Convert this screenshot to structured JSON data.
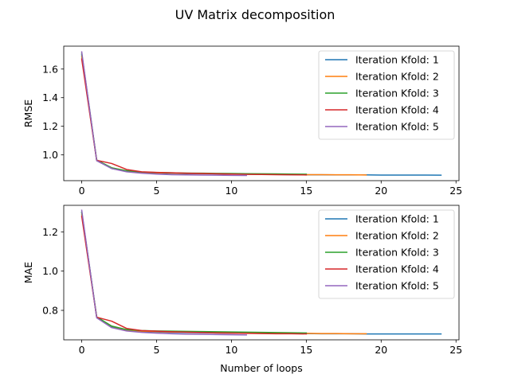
{
  "chart_data": {
    "title": "UV Matrix decomposition",
    "subplots": [
      {
        "type": "line",
        "xlabel": "",
        "ylabel": "RMSE",
        "xlim": [
          -1.2,
          25.2
        ],
        "ylim": [
          0.82,
          1.76
        ],
        "xticks": [
          0,
          5,
          10,
          15,
          20,
          25
        ],
        "yticks": [
          1.0,
          1.2,
          1.4,
          1.6
        ],
        "ytick_labels": [
          "1.0",
          "1.2",
          "1.4",
          "1.6"
        ],
        "legend_position": "top-right",
        "series": [
          {
            "name": "Iteration Kfold: 1",
            "color": "#1f77b4",
            "x": [
              0,
              1,
              2,
              3,
              4,
              5,
              6,
              7,
              8,
              9,
              10,
              11,
              12,
              13,
              14,
              15,
              16,
              17,
              18,
              19,
              20,
              21,
              22,
              23,
              24
            ],
            "y": [
              1.7,
              0.96,
              0.905,
              0.885,
              0.877,
              0.873,
              0.871,
              0.869,
              0.868,
              0.867,
              0.866,
              0.865,
              0.864,
              0.863,
              0.862,
              0.861,
              0.861,
              0.86,
              0.86,
              0.86,
              0.859,
              0.859,
              0.859,
              0.859,
              0.858
            ]
          },
          {
            "name": "Iteration Kfold: 2",
            "color": "#ff7f0e",
            "x": [
              0,
              1,
              2,
              3,
              4,
              5,
              6,
              7,
              8,
              9,
              10,
              11,
              12,
              13,
              14,
              15,
              16,
              17,
              18,
              19
            ],
            "y": [
              1.69,
              0.96,
              0.91,
              0.888,
              0.879,
              0.875,
              0.873,
              0.871,
              0.87,
              0.868,
              0.867,
              0.866,
              0.865,
              0.864,
              0.863,
              0.862,
              0.862,
              0.861,
              0.861,
              0.86
            ]
          },
          {
            "name": "Iteration Kfold: 3",
            "color": "#2ca02c",
            "x": [
              0,
              1,
              2,
              3,
              4,
              5,
              6,
              7,
              8,
              9,
              10,
              11,
              12,
              13,
              14,
              15
            ],
            "y": [
              1.71,
              0.965,
              0.91,
              0.889,
              0.88,
              0.877,
              0.875,
              0.873,
              0.872,
              0.871,
              0.87,
              0.869,
              0.868,
              0.867,
              0.866,
              0.865
            ]
          },
          {
            "name": "Iteration Kfold: 4",
            "color": "#d62728",
            "x": [
              0,
              1,
              2,
              3,
              4,
              5,
              6,
              7,
              8,
              9,
              10,
              11,
              12,
              13,
              14,
              15
            ],
            "y": [
              1.67,
              0.962,
              0.94,
              0.898,
              0.882,
              0.878,
              0.875,
              0.872,
              0.87,
              0.868,
              0.866,
              0.864,
              0.863,
              0.862,
              0.861,
              0.86
            ]
          },
          {
            "name": "Iteration Kfold: 5",
            "color": "#9467bd",
            "x": [
              0,
              1,
              2,
              3,
              4,
              5,
              6,
              7,
              8,
              9,
              10,
              11
            ],
            "y": [
              1.72,
              0.96,
              0.905,
              0.882,
              0.872,
              0.866,
              0.862,
              0.86,
              0.859,
              0.858,
              0.857,
              0.856
            ]
          }
        ]
      },
      {
        "type": "line",
        "xlabel": "Number of loops",
        "ylabel": "MAE",
        "xlim": [
          -1.2,
          25.2
        ],
        "ylim": [
          0.65,
          1.335
        ],
        "xticks": [
          0,
          5,
          10,
          15,
          20,
          25
        ],
        "yticks": [
          0.8,
          1.0,
          1.2
        ],
        "ytick_labels": [
          "0.8",
          "1.0",
          "1.2"
        ],
        "legend_position": "top-right",
        "series": [
          {
            "name": "Iteration Kfold: 1",
            "color": "#1f77b4",
            "x": [
              0,
              1,
              2,
              3,
              4,
              5,
              6,
              7,
              8,
              9,
              10,
              11,
              12,
              13,
              14,
              15,
              16,
              17,
              18,
              19,
              20,
              21,
              22,
              23,
              24
            ],
            "y": [
              1.3,
              0.765,
              0.715,
              0.698,
              0.692,
              0.69,
              0.688,
              0.687,
              0.686,
              0.685,
              0.684,
              0.684,
              0.683,
              0.683,
              0.682,
              0.682,
              0.681,
              0.681,
              0.681,
              0.68,
              0.68,
              0.68,
              0.68,
              0.68,
              0.68
            ]
          },
          {
            "name": "Iteration Kfold: 2",
            "color": "#ff7f0e",
            "x": [
              0,
              1,
              2,
              3,
              4,
              5,
              6,
              7,
              8,
              9,
              10,
              11,
              12,
              13,
              14,
              15,
              16,
              17,
              18,
              19
            ],
            "y": [
              1.29,
              0.765,
              0.72,
              0.7,
              0.694,
              0.692,
              0.69,
              0.689,
              0.688,
              0.687,
              0.686,
              0.685,
              0.684,
              0.684,
              0.683,
              0.683,
              0.682,
              0.682,
              0.681,
              0.681
            ]
          },
          {
            "name": "Iteration Kfold: 3",
            "color": "#2ca02c",
            "x": [
              0,
              1,
              2,
              3,
              4,
              5,
              6,
              7,
              8,
              9,
              10,
              11,
              12,
              13,
              14,
              15
            ],
            "y": [
              1.3,
              0.767,
              0.72,
              0.702,
              0.697,
              0.695,
              0.694,
              0.693,
              0.692,
              0.691,
              0.69,
              0.689,
              0.688,
              0.687,
              0.686,
              0.685
            ]
          },
          {
            "name": "Iteration Kfold: 4",
            "color": "#d62728",
            "x": [
              0,
              1,
              2,
              3,
              4,
              5,
              6,
              7,
              8,
              9,
              10,
              11,
              12,
              13,
              14,
              15
            ],
            "y": [
              1.28,
              0.765,
              0.745,
              0.708,
              0.697,
              0.694,
              0.691,
              0.689,
              0.687,
              0.685,
              0.684,
              0.683,
              0.682,
              0.681,
              0.681,
              0.68
            ]
          },
          {
            "name": "Iteration Kfold: 5",
            "color": "#9467bd",
            "x": [
              0,
              1,
              2,
              3,
              4,
              5,
              6,
              7,
              8,
              9,
              10,
              11
            ],
            "y": [
              1.31,
              0.762,
              0.712,
              0.695,
              0.688,
              0.684,
              0.681,
              0.679,
              0.678,
              0.677,
              0.676,
              0.675
            ]
          }
        ]
      }
    ]
  }
}
